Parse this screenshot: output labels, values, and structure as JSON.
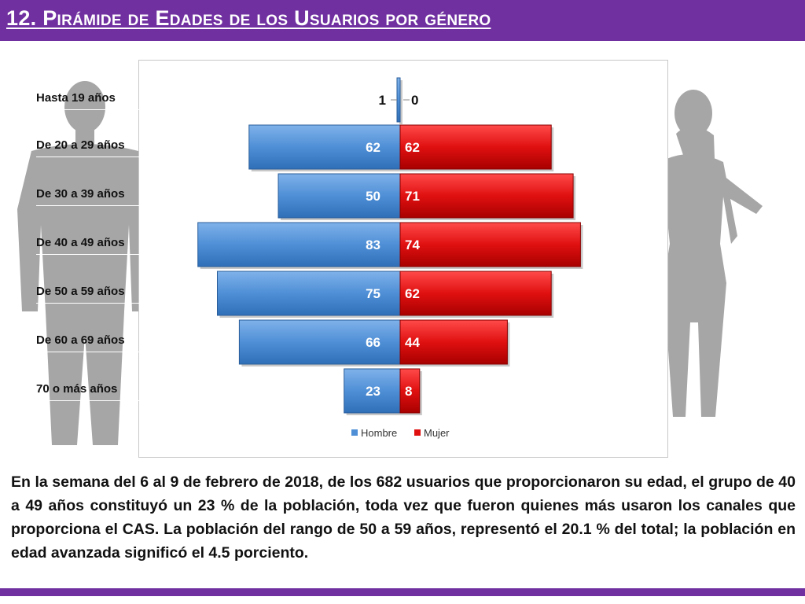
{
  "header": {
    "title": "12. Pirámide de Edades de los Usuarios por género"
  },
  "colors": {
    "header_bg": "#7030a0",
    "hombre": "#4f8fd6",
    "mujer": "#e01010"
  },
  "chart_data": {
    "type": "bar",
    "orientation": "horizontal-diverging",
    "title": "",
    "categories": [
      "Hasta 19 años",
      "De 20 a 29 años",
      "De 30 a 39 años",
      "De 40 a 49 años",
      "De 50 a 59 años",
      "De 60 a 69 años",
      "70 o más años"
    ],
    "series": [
      {
        "name": "Hombre",
        "values": [
          1,
          62,
          50,
          83,
          75,
          66,
          23
        ]
      },
      {
        "name": "Mujer",
        "values": [
          0,
          62,
          71,
          74,
          62,
          44,
          8
        ]
      }
    ],
    "xlim": [
      -83,
      83
    ],
    "grid": false,
    "legend": "bottom"
  },
  "description": "En la semana del 6 al 9 de febrero de 2018, de los 682 usuarios que proporcionaron su edad, el grupo de 40 a 49 años constituyó un 23 % de la población, toda vez que fueron quienes más usaron los canales que proporciona el CAS. La población del rango de 50 a 59 años, representó el 20.1 % del total; la población en edad avanzada significó el 4.5 porciento."
}
